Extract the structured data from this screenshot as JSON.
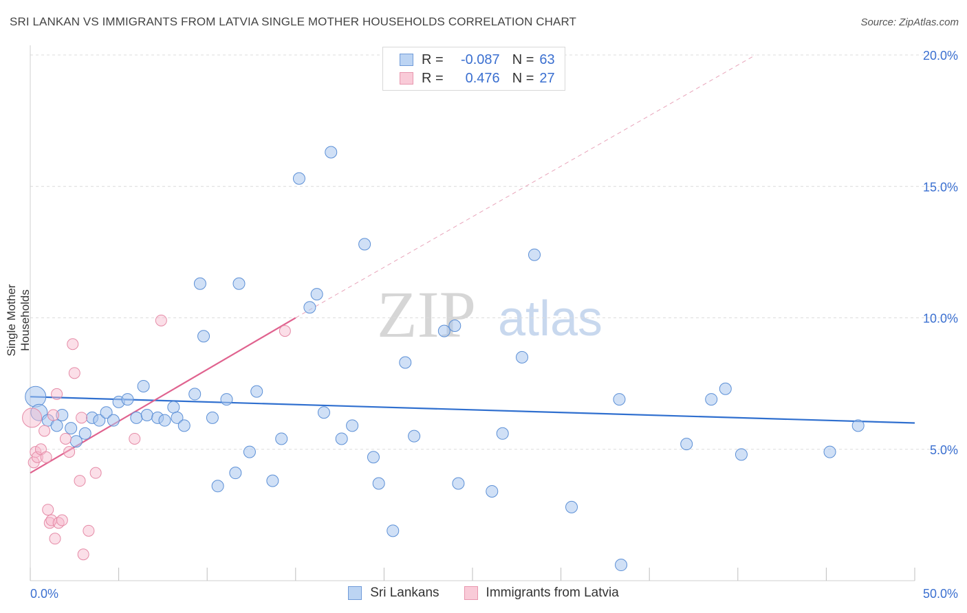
{
  "title": "SRI LANKAN VS IMMIGRANTS FROM LATVIA SINGLE MOTHER HOUSEHOLDS CORRELATION CHART",
  "source": "Source: ZipAtlas.com",
  "watermark": {
    "zip": "ZIP",
    "atlas": "atlas"
  },
  "legend": {
    "r_label": "R =",
    "n_label": "N =",
    "series1": {
      "r": "-0.087",
      "n": "63"
    },
    "series2": {
      "r": "0.476",
      "n": "27"
    }
  },
  "colors": {
    "blue": "#a9c7ef",
    "blue_stroke": "#5b8fd6",
    "blue_line": "#2f6fcf",
    "pink": "#f7b9cb",
    "pink_stroke": "#e58aa6",
    "pink_line": "#e0638f",
    "tick_text": "#3a6fd0"
  },
  "chart_data": {
    "type": "scatter",
    "title": "SRI LANKAN VS IMMIGRANTS FROM LATVIA SINGLE MOTHER HOUSEHOLDS CORRELATION CHART",
    "xlabel": "",
    "ylabel": "Single Mother Households",
    "xlim": [
      0,
      50
    ],
    "ylim": [
      0,
      20
    ],
    "x_tick_labels": [
      "0.0%",
      "50.0%"
    ],
    "y_ticks": [
      5,
      10,
      15,
      20
    ],
    "y_tick_labels": [
      "5.0%",
      "10.0%",
      "15.0%",
      "20.0%"
    ],
    "grid": "horizontal dashed",
    "legend_position": "top-center",
    "series": [
      {
        "name": "Sri Lankans",
        "r": -0.087,
        "n": 63,
        "trend": {
          "x": [
            0,
            50
          ],
          "y": [
            7.0,
            6.0
          ]
        },
        "points": [
          [
            0.3,
            7.0
          ],
          [
            0.5,
            6.4
          ],
          [
            1.0,
            6.1
          ],
          [
            1.5,
            5.9
          ],
          [
            1.8,
            6.3
          ],
          [
            2.3,
            5.8
          ],
          [
            2.6,
            5.3
          ],
          [
            3.1,
            5.6
          ],
          [
            3.5,
            6.2
          ],
          [
            3.9,
            6.1
          ],
          [
            4.3,
            6.4
          ],
          [
            4.7,
            6.1
          ],
          [
            5.0,
            6.8
          ],
          [
            5.5,
            6.9
          ],
          [
            6.0,
            6.2
          ],
          [
            6.4,
            7.4
          ],
          [
            6.6,
            6.3
          ],
          [
            7.2,
            6.2
          ],
          [
            7.6,
            6.1
          ],
          [
            8.1,
            6.6
          ],
          [
            8.3,
            6.2
          ],
          [
            8.7,
            5.9
          ],
          [
            9.3,
            7.1
          ],
          [
            9.6,
            11.3
          ],
          [
            9.8,
            9.3
          ],
          [
            10.3,
            6.2
          ],
          [
            10.6,
            3.6
          ],
          [
            11.1,
            6.9
          ],
          [
            11.6,
            4.1
          ],
          [
            11.8,
            11.3
          ],
          [
            12.4,
            4.9
          ],
          [
            12.8,
            7.2
          ],
          [
            13.7,
            3.8
          ],
          [
            14.2,
            5.4
          ],
          [
            15.2,
            15.3
          ],
          [
            15.8,
            10.4
          ],
          [
            16.2,
            10.9
          ],
          [
            16.6,
            6.4
          ],
          [
            17.0,
            16.3
          ],
          [
            17.6,
            5.4
          ],
          [
            18.2,
            5.9
          ],
          [
            18.9,
            12.8
          ],
          [
            19.4,
            4.7
          ],
          [
            19.7,
            3.7
          ],
          [
            20.5,
            1.9
          ],
          [
            21.2,
            8.3
          ],
          [
            21.7,
            5.5
          ],
          [
            23.4,
            9.5
          ],
          [
            24.0,
            9.7
          ],
          [
            24.2,
            3.7
          ],
          [
            26.1,
            3.4
          ],
          [
            26.7,
            5.6
          ],
          [
            27.8,
            8.5
          ],
          [
            28.5,
            12.4
          ],
          [
            30.6,
            2.8
          ],
          [
            33.3,
            6.9
          ],
          [
            33.4,
            0.6
          ],
          [
            37.1,
            5.2
          ],
          [
            38.5,
            6.9
          ],
          [
            39.3,
            7.3
          ],
          [
            40.2,
            4.8
          ],
          [
            45.2,
            4.9
          ],
          [
            46.8,
            5.9
          ]
        ]
      },
      {
        "name": "Immigrants from Latvia",
        "r": 0.476,
        "n": 27,
        "trend": {
          "x": [
            0,
            15
          ],
          "y": [
            4.1,
            10.0
          ]
        },
        "trend_dashed": {
          "x": [
            15,
            41
          ],
          "y": [
            10.0,
            20.0
          ]
        },
        "points": [
          [
            0.1,
            6.2
          ],
          [
            0.2,
            4.5
          ],
          [
            0.3,
            4.9
          ],
          [
            0.4,
            4.7
          ],
          [
            0.6,
            5.0
          ],
          [
            0.8,
            5.7
          ],
          [
            0.9,
            4.7
          ],
          [
            1.0,
            2.7
          ],
          [
            1.1,
            2.2
          ],
          [
            1.2,
            2.3
          ],
          [
            1.3,
            6.3
          ],
          [
            1.4,
            1.6
          ],
          [
            1.5,
            7.1
          ],
          [
            1.6,
            2.2
          ],
          [
            1.8,
            2.3
          ],
          [
            2.0,
            5.4
          ],
          [
            2.2,
            4.9
          ],
          [
            2.4,
            9.0
          ],
          [
            2.5,
            7.9
          ],
          [
            2.8,
            3.8
          ],
          [
            2.9,
            6.2
          ],
          [
            3.0,
            1.0
          ],
          [
            3.3,
            1.9
          ],
          [
            3.7,
            4.1
          ],
          [
            5.9,
            5.4
          ],
          [
            7.4,
            9.9
          ],
          [
            14.4,
            9.5
          ]
        ]
      }
    ]
  }
}
